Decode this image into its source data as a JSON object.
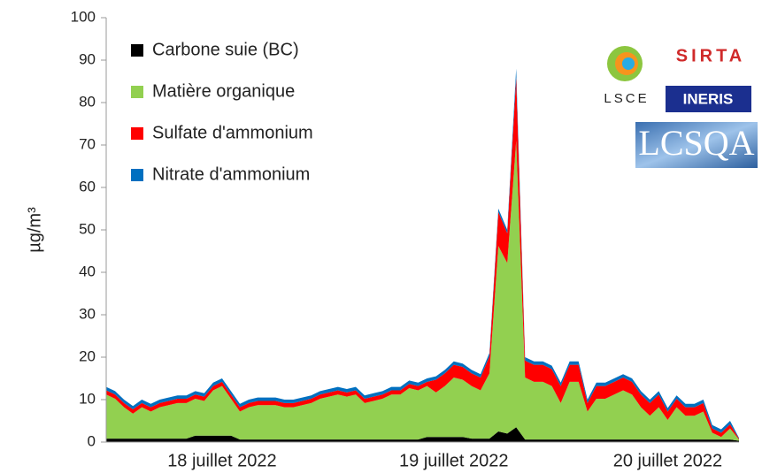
{
  "chart_data": {
    "type": "stacked_area",
    "ylabel": "µg/m³",
    "categories": [
      null,
      null,
      null,
      null,
      null,
      null,
      null,
      null,
      null,
      null,
      null,
      null,
      null,
      "18 juillet 2022",
      null,
      null,
      null,
      null,
      null,
      null,
      null,
      null,
      null,
      null,
      null,
      null,
      null,
      null,
      null,
      null,
      null,
      null,
      null,
      null,
      null,
      null,
      null,
      null,
      null,
      "19 juillet 2022",
      null,
      null,
      null,
      null,
      null,
      null,
      null,
      null,
      null,
      null,
      null,
      null,
      null,
      null,
      null,
      null,
      null,
      null,
      null,
      null,
      null,
      null,
      null,
      "20 juillet 2022",
      null,
      null,
      null,
      null,
      null,
      null,
      null,
      null
    ],
    "series": [
      {
        "name": "Carbone suie (BC)",
        "color": "#000000",
        "values": [
          0.8,
          0.8,
          0.8,
          0.8,
          0.8,
          0.8,
          0.8,
          0.8,
          0.8,
          0.8,
          1.5,
          1.5,
          1.5,
          1.5,
          1.5,
          0.6,
          0.6,
          0.6,
          0.6,
          0.6,
          0.6,
          0.6,
          0.6,
          0.6,
          0.6,
          0.6,
          0.6,
          0.6,
          0.6,
          0.6,
          0.6,
          0.6,
          0.6,
          0.6,
          0.6,
          0.6,
          1.2,
          1.2,
          1.2,
          1.2,
          1.2,
          0.8,
          0.8,
          0.8,
          2.5,
          2,
          3.5,
          0.6,
          0.6,
          0.6,
          0.6,
          0.6,
          0.6,
          0.6,
          0.6,
          0.6,
          0.6,
          0.6,
          0.6,
          0.6,
          0.6,
          0.6,
          0.6,
          0.6,
          0.6,
          0.6,
          0.6,
          0.6,
          0.6,
          0.6,
          0.6,
          0.3
        ]
      },
      {
        "name": "Matière organique",
        "color": "#92d050",
        "values": [
          10.4,
          9.4,
          7.4,
          5.9,
          7.4,
          6.4,
          7.4,
          7.9,
          8.4,
          8.4,
          8.7,
          8.2,
          10.7,
          11.7,
          8.7,
          6.6,
          7.6,
          8.1,
          8.1,
          8.1,
          7.6,
          7.6,
          8.1,
          8.6,
          9.6,
          10.1,
          10.6,
          10.1,
          10.6,
          8.6,
          9.1,
          9.6,
          10.6,
          10.6,
          12.1,
          11.6,
          12,
          10.5,
          12,
          14,
          13.5,
          12.4,
          11.4,
          15.4,
          43.7,
          40.2,
          67.5,
          14.6,
          13.6,
          13.6,
          12.6,
          8.6,
          13.6,
          13.6,
          6.6,
          9.6,
          9.6,
          10.6,
          11.6,
          10.6,
          7.6,
          5.6,
          7.6,
          4.6,
          7.6,
          5.6,
          5.6,
          6.6,
          1.6,
          0.6,
          2.6,
          0.3
        ]
      },
      {
        "name": "Sulfate d'ammonium",
        "color": "#ff0000",
        "values": [
          1,
          1,
          1,
          1,
          1,
          1,
          1,
          1,
          1,
          1,
          1,
          1,
          1,
          1,
          1,
          1,
          1,
          1,
          1,
          1,
          1,
          1,
          1,
          1,
          1,
          1,
          1,
          1,
          1,
          1,
          1,
          1,
          1,
          1,
          1,
          1,
          1,
          3,
          3,
          3,
          3,
          3,
          3,
          4,
          8,
          7,
          15,
          4,
          4,
          4,
          4,
          4,
          4,
          4,
          2,
          3,
          3,
          3,
          3,
          3,
          3,
          3,
          3,
          2,
          2,
          2,
          2,
          2,
          1,
          1,
          1,
          0.2
        ]
      },
      {
        "name": "Nitrate d'ammonium",
        "color": "#0070c0",
        "values": [
          0.8,
          0.8,
          0.8,
          0.8,
          0.8,
          0.8,
          0.8,
          0.8,
          0.8,
          0.8,
          0.8,
          0.8,
          0.8,
          0.8,
          0.8,
          0.8,
          0.8,
          0.8,
          0.8,
          0.8,
          0.8,
          0.8,
          0.8,
          0.8,
          0.8,
          0.8,
          0.8,
          0.8,
          0.8,
          0.8,
          0.8,
          0.8,
          0.8,
          0.8,
          0.8,
          0.8,
          0.8,
          0.8,
          0.8,
          0.8,
          0.8,
          0.8,
          0.8,
          0.8,
          0.8,
          0.8,
          2,
          0.8,
          0.8,
          0.8,
          0.8,
          0.8,
          0.8,
          0.8,
          0.8,
          0.8,
          0.8,
          0.8,
          0.8,
          0.8,
          0.8,
          0.8,
          0.8,
          0.8,
          0.8,
          0.8,
          0.8,
          0.8,
          0.8,
          0.8,
          0.8,
          0.2
        ]
      }
    ],
    "ylim": [
      0,
      100
    ],
    "yticks": [
      0,
      10,
      20,
      30,
      40,
      50,
      60,
      70,
      80,
      90,
      100
    ],
    "grid": false,
    "legend": "upper left",
    "annotations": [
      "LSCE",
      "SIRTA",
      "INERIS",
      "LCSQA"
    ]
  }
}
